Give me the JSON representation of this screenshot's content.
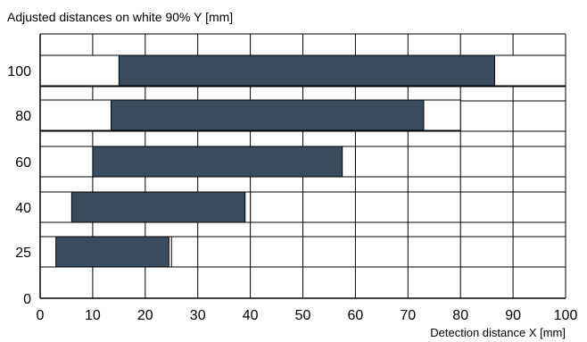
{
  "chart_data": {
    "type": "bar",
    "subtype": "horizontal-range",
    "title": "Adjusted distances on white 90% Y [mm]",
    "xlabel": "Detection distance X [mm]",
    "ylabel": "",
    "xlim": [
      0,
      100
    ],
    "x_ticks": [
      "0",
      "10",
      "20",
      "30",
      "40",
      "50",
      "60",
      "70",
      "80",
      "90",
      "100"
    ],
    "y_ticks": [
      "0",
      "25",
      "40",
      "60",
      "80",
      "100"
    ],
    "grid": true,
    "bar_colors": {
      "fill": "#3a4d5e",
      "outline": "#000000",
      "background": "#ffffff"
    },
    "categories": [
      "25",
      "40",
      "60",
      "80",
      "100"
    ],
    "series": [
      {
        "ranges": [
          {
            "category": "25",
            "total": [
              0,
              25
            ],
            "range": [
              3,
              24.5
            ]
          },
          {
            "category": "40",
            "total": [
              0,
              40
            ],
            "range": [
              6,
              39
            ]
          },
          {
            "category": "60",
            "total": [
              0,
              60
            ],
            "range": [
              10,
              57.5
            ]
          },
          {
            "category": "80",
            "total": [
              0,
              80
            ],
            "range": [
              13.5,
              73
            ]
          },
          {
            "category": "100",
            "total": [
              0,
              100
            ],
            "range": [
              15,
              86.5
            ]
          }
        ]
      }
    ]
  }
}
